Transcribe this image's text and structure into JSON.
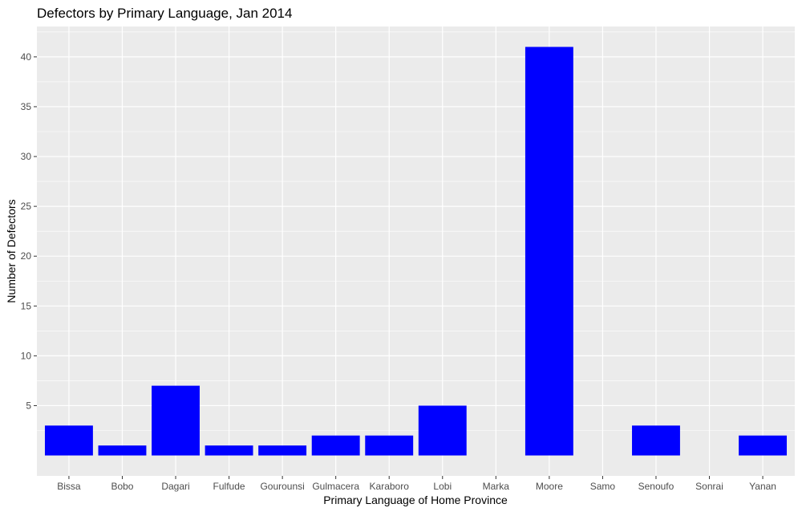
{
  "chart_data": {
    "type": "bar",
    "title": "Defectors by Primary Language, Jan 2014",
    "xlabel": "Primary Language of Home Province",
    "ylabel": "Number of Defectors",
    "categories": [
      "Bissa",
      "Bobo",
      "Dagari",
      "Fulfude",
      "Gourounsi",
      "Gulmacera",
      "Karaboro",
      "Lobi",
      "Marka",
      "Moore",
      "Samo",
      "Senoufo",
      "Sonrai",
      "Yanan"
    ],
    "values": [
      3,
      1,
      7,
      1,
      1,
      2,
      2,
      5,
      0,
      41,
      0,
      3,
      0,
      2
    ],
    "ylim": [
      -2.05,
      43.05
    ],
    "yticks": [
      5,
      10,
      15,
      20,
      25,
      30,
      35,
      40
    ],
    "bar_color": "#0000ff",
    "panel_background": "#ebebeb",
    "grid_color": "#ffffff",
    "grid": true,
    "legend": "none"
  }
}
